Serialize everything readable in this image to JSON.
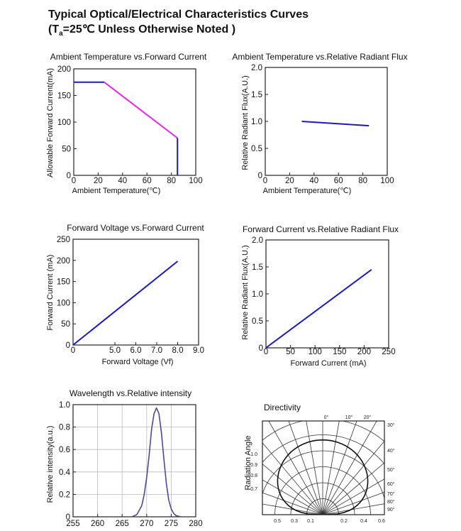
{
  "heading": {
    "line1": "Typical Optical/Electrical Characteristics Curves",
    "line2_prefix": "(T",
    "line2_sub": "a",
    "line2_rest": "=25℃ Unless Otherwise Noted )"
  },
  "colors": {
    "blue": "#1a1acc",
    "magenta": "#ee22ee",
    "purple": "#4a4a9a"
  },
  "chart_data": [
    {
      "id": "c1",
      "type": "line",
      "title": "Ambient Temperature vs.Forward Current",
      "xlabel": "Ambient Temperature(℃)",
      "ylabel": "Allowable Forward Current(mA)",
      "xlim": [
        0,
        100
      ],
      "ylim": [
        0,
        200
      ],
      "xticks": [
        "0",
        "20",
        "40",
        "60",
        "80",
        "100"
      ],
      "yticks": [
        "0",
        "50",
        "100",
        "150",
        "200"
      ],
      "series": [
        {
          "name": "flat",
          "color": "#1a1acc",
          "x": [
            0,
            25
          ],
          "y": [
            175,
            175
          ]
        },
        {
          "name": "derating",
          "color": "#ee22ee",
          "x": [
            25,
            85
          ],
          "y": [
            175,
            70
          ]
        },
        {
          "name": "cutoff",
          "color": "#1a1acc",
          "x": [
            85,
            85
          ],
          "y": [
            70,
            0
          ]
        }
      ]
    },
    {
      "id": "c2",
      "type": "line",
      "title": "Ambient Temperature vs.Relative Radiant Flux",
      "xlabel": "Ambient Temperature(℃)",
      "ylabel": "Relative Radiant Flux(A.U.)",
      "xlim": [
        0,
        100
      ],
      "ylim": [
        0,
        2.0
      ],
      "xticks": [
        "0",
        "20",
        "40",
        "60",
        "80",
        "100"
      ],
      "yticks": [
        "0",
        "0.5",
        "1.0",
        "1.5",
        "2.0"
      ],
      "series": [
        {
          "name": "flux",
          "color": "#1a1acc",
          "x": [
            30,
            85
          ],
          "y": [
            1.0,
            0.92
          ]
        }
      ]
    },
    {
      "id": "c3",
      "type": "line",
      "title": "Forward Voltage vs.Forward Current",
      "xlabel": "Forward Voltage (Vf)",
      "ylabel": "Forward Current (mA)",
      "xlim": [
        3,
        9
      ],
      "ylim": [
        0,
        250
      ],
      "xticks": [
        "5.0",
        "6.0",
        "7.0",
        "8.0",
        "9.0"
      ],
      "xtick_values": [
        5,
        6,
        7,
        8,
        9
      ],
      "yticks": [
        "0",
        "50",
        "100",
        "150",
        "200",
        "250"
      ],
      "series": [
        {
          "name": "iv",
          "color": "#1a1acc",
          "x": [
            3.0,
            8.0
          ],
          "y": [
            0,
            198
          ]
        }
      ]
    },
    {
      "id": "c4",
      "type": "line",
      "title": "Forward Current vs.Relative Radiant Flux",
      "xlabel": "Forward Current (mA)",
      "ylabel": "Relative Radiant Flux(A.U.)",
      "xlim": [
        0,
        250
      ],
      "ylim": [
        0,
        2.0
      ],
      "xticks": [
        "0",
        "50",
        "100",
        "150",
        "200",
        "250"
      ],
      "yticks": [
        "0",
        "0.5",
        "1.0",
        "1.5",
        "2.0"
      ],
      "series": [
        {
          "name": "flux",
          "color": "#1a1acc",
          "x": [
            0,
            215
          ],
          "y": [
            0,
            1.45
          ]
        }
      ]
    },
    {
      "id": "c5",
      "type": "line",
      "title": "Wavelength vs.Relative intensity",
      "xlabel": "",
      "ylabel": "Relative intensity(a.u.)",
      "xlim": [
        255,
        280
      ],
      "ylim": [
        0,
        1.0
      ],
      "xticks": [
        "255",
        "260",
        "265",
        "270",
        "275",
        "280"
      ],
      "yticks": [
        "0",
        "0.2",
        "0.4",
        "0.6",
        "0.8",
        "1.0"
      ],
      "grid": true,
      "series": [
        {
          "name": "spectrum",
          "color": "#4a4a9a",
          "x": [
            267.0,
            268.0,
            269.0,
            269.5,
            270.0,
            270.5,
            271.0,
            271.5,
            272.0,
            272.5,
            273.0,
            273.5,
            274.0,
            274.5,
            275.0,
            275.5,
            276.0,
            277.0
          ],
          "y": [
            0.0,
            0.02,
            0.1,
            0.2,
            0.35,
            0.55,
            0.78,
            0.92,
            0.97,
            0.92,
            0.75,
            0.52,
            0.3,
            0.15,
            0.07,
            0.03,
            0.01,
            0.0
          ]
        }
      ]
    },
    {
      "id": "c6",
      "type": "polar",
      "title": "Directivity",
      "ylabel": "Radiation Angle",
      "top_angle_labels": [
        "0°",
        "10°",
        "20°"
      ],
      "right_angle_labels": [
        "30°",
        "40°",
        "50°",
        "60°",
        "70°",
        "80°",
        "90°"
      ],
      "radial_labels_left": [
        "1.0",
        "0.9",
        "0.8",
        "0.7"
      ],
      "bottom_left_labels": [
        "0.5",
        "0.3",
        "0.1"
      ],
      "bottom_right_labels": [
        "0.2",
        "0.4",
        "0.6"
      ]
    }
  ]
}
